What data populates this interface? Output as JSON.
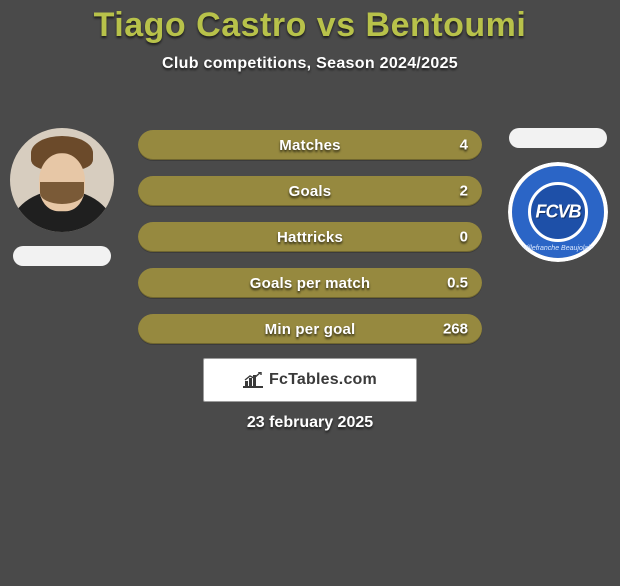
{
  "background_color": "#4a4a4a",
  "title": {
    "text": "Tiago Castro vs Bentoumi",
    "color": "#b8c24a",
    "fontsize": 34
  },
  "subtitle": {
    "text": "Club competitions, Season 2024/2025",
    "color": "#ffffff",
    "fontsize": 16
  },
  "players": {
    "left": {
      "avatar_bg": "#d7cdbf",
      "flag_bg": "#f2f2f2"
    },
    "right": {
      "flag_bg": "#f2f2f2",
      "badge": {
        "outer_border": "#ffffff",
        "ring_color": "#2b65c6",
        "core_color": "#1e50a8",
        "text": "FCVB",
        "text_color": "#ffffff",
        "text_fontsize": 18,
        "subtext": "Villefranche Beaujolais"
      }
    }
  },
  "stats": {
    "bar_color": "#96893f",
    "label_color": "#ffffff",
    "label_fontsize": 15,
    "value_color": "#ffffff",
    "value_fontsize": 15,
    "rows": [
      {
        "label": "Matches",
        "value": "4"
      },
      {
        "label": "Goals",
        "value": "2"
      },
      {
        "label": "Hattricks",
        "value": "0"
      },
      {
        "label": "Goals per match",
        "value": "0.5"
      },
      {
        "label": "Min per goal",
        "value": "268"
      }
    ]
  },
  "brand": {
    "text": "FcTables.com",
    "text_color": "#3a3a3a",
    "background": "#ffffff",
    "border_color": "#9c9c9c",
    "icon_color": "#3a3a3a",
    "fontsize": 16
  },
  "date": {
    "text": "23 february 2025",
    "color": "#ffffff",
    "fontsize": 16
  }
}
